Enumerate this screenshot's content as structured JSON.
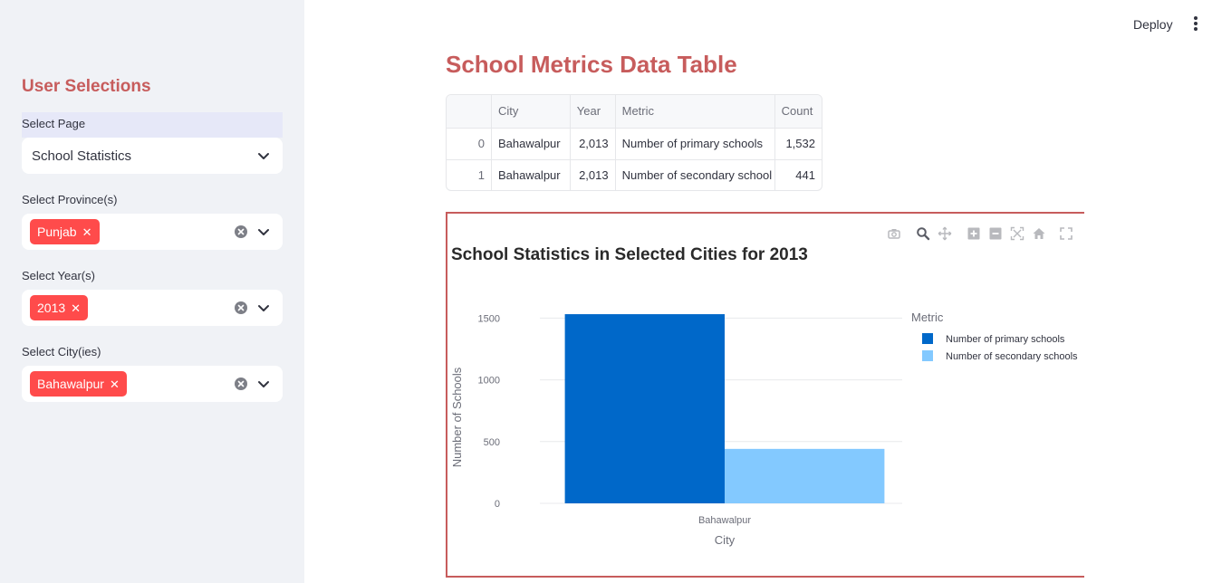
{
  "sidebar": {
    "title": "User Selections",
    "page_select": {
      "label": "Select Page",
      "value": "School Statistics"
    },
    "province_select": {
      "label": "Select Province(s)",
      "tags": [
        "Punjab"
      ]
    },
    "year_select": {
      "label": "Select Year(s)",
      "tags": [
        "2013"
      ]
    },
    "city_select": {
      "label": "Select City(ies)",
      "tags": [
        "Bahawalpur"
      ]
    }
  },
  "header": {
    "deploy_label": "Deploy"
  },
  "main": {
    "title": "School Metrics Data Table",
    "table": {
      "columns": [
        "",
        "City",
        "Year",
        "Metric",
        "Count"
      ],
      "rows": [
        [
          "0",
          "Bahawalpur",
          "2,013",
          "Number of primary schools",
          "1,532"
        ],
        [
          "1",
          "Bahawalpur",
          "2,013",
          "Number of secondary school",
          "441"
        ]
      ]
    }
  },
  "colors": {
    "accent": "#c75c5c",
    "tag": "#ff4b4b",
    "primary_bar": "#0068c9",
    "secondary_bar": "#83c9ff"
  },
  "chart_data": {
    "type": "bar",
    "title": "School Statistics in Selected Cities for 2013",
    "xlabel": "City",
    "ylabel": "Number of Schools",
    "categories": [
      "Bahawalpur"
    ],
    "series": [
      {
        "name": "Number of primary schools",
        "values": [
          1532
        ],
        "color": "#0068c9"
      },
      {
        "name": "Number of secondary schools",
        "values": [
          441
        ],
        "color": "#83c9ff"
      }
    ],
    "legend_title": "Metric",
    "legend_position": "right",
    "yticks": [
      0,
      500,
      1000,
      1500
    ],
    "ylim": [
      0,
      1613
    ],
    "grid": true
  }
}
